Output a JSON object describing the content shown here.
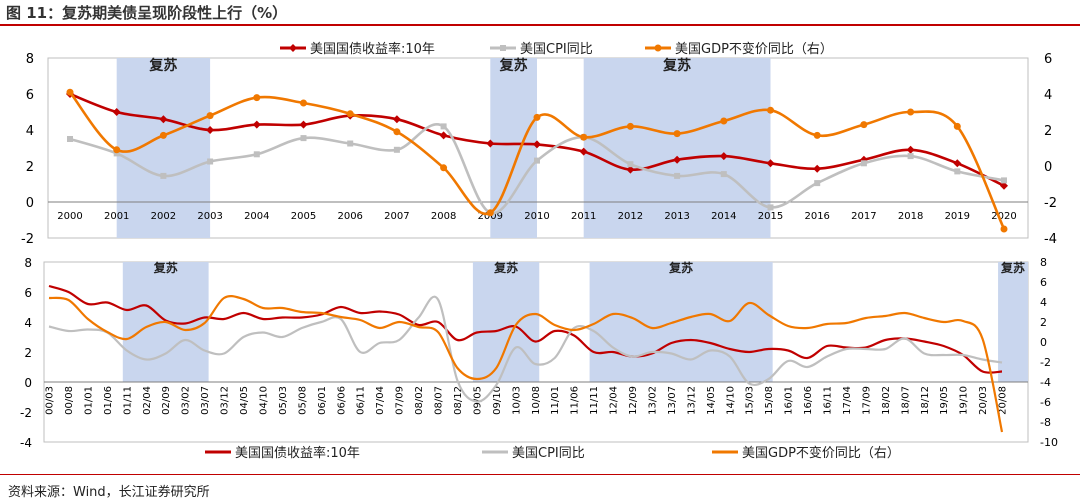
{
  "figure": {
    "title": "图 11：复苏期美债呈现阶段性上行（%）",
    "source": "资料来源：Wind，长江证券研究所"
  },
  "colors": {
    "yield": "#c00000",
    "cpi": "#bfbfbf",
    "gdp": "#f07800",
    "shade": "#c9d6ee",
    "rule": "#c00000"
  },
  "chart_data": [
    {
      "type": "line",
      "id": "annual",
      "x": [
        "2000",
        "2001",
        "2002",
        "2003",
        "2004",
        "2005",
        "2006",
        "2007",
        "2008",
        "2009",
        "2010",
        "2011",
        "2012",
        "2013",
        "2014",
        "2015",
        "2016",
        "2017",
        "2018",
        "2019",
        "2020"
      ],
      "series": [
        {
          "name": "美国国债收益率:10年",
          "axis": "left",
          "color": "#c00000",
          "marker": "diamond",
          "values": [
            6.0,
            5.0,
            4.6,
            4.0,
            4.3,
            4.3,
            4.8,
            4.6,
            3.7,
            3.25,
            3.2,
            2.8,
            1.8,
            2.35,
            2.55,
            2.15,
            1.85,
            2.35,
            2.9,
            2.15,
            0.9
          ]
        },
        {
          "name": "美国CPI同比",
          "axis": "left",
          "color": "#bfbfbf",
          "marker": "square",
          "values": [
            3.5,
            2.7,
            1.45,
            2.25,
            2.65,
            3.55,
            3.25,
            2.9,
            4.2,
            -0.6,
            2.3,
            3.6,
            2.1,
            1.45,
            1.55,
            -0.3,
            1.05,
            2.15,
            2.55,
            1.7,
            1.2
          ]
        },
        {
          "name": "美国GDP不变价同比（右）",
          "axis": "right",
          "color": "#f07800",
          "marker": "circle",
          "values": [
            4.1,
            0.9,
            1.7,
            2.8,
            3.8,
            3.5,
            2.9,
            1.9,
            -0.1,
            -2.6,
            2.7,
            1.6,
            2.2,
            1.8,
            2.5,
            3.1,
            1.7,
            2.3,
            3.0,
            2.2,
            -3.5
          ]
        }
      ],
      "shaded": [
        {
          "from": "2001",
          "to": "2003",
          "label": "复苏"
        },
        {
          "from": "2009",
          "to": "2010",
          "label": "复苏"
        },
        {
          "from": "2011",
          "to": "2015",
          "label": "复苏"
        }
      ],
      "ylim_left": [
        -2,
        8
      ],
      "yticks_left": [
        "-2",
        "0",
        "2",
        "4",
        "6",
        "8"
      ],
      "ylim_right": [
        -4,
        6
      ],
      "yticks_right": [
        "-4",
        "-2",
        "0",
        "2",
        "4",
        "6"
      ],
      "legend": "top"
    },
    {
      "type": "line",
      "id": "monthly",
      "x_tick_labels": [
        "00/03",
        "00/08",
        "01/01",
        "01/06",
        "01/11",
        "02/04",
        "02/09",
        "03/02",
        "03/07",
        "03/12",
        "04/05",
        "04/10",
        "05/03",
        "05/08",
        "06/01",
        "06/06",
        "06/11",
        "07/04",
        "07/09",
        "08/02",
        "08/07",
        "08/12",
        "09/05",
        "09/10",
        "10/03",
        "10/08",
        "11/01",
        "11/06",
        "11/11",
        "12/04",
        "12/09",
        "13/02",
        "13/07",
        "13/12",
        "14/05",
        "14/10",
        "15/03",
        "15/08",
        "16/01",
        "16/06",
        "16/11",
        "17/04",
        "17/09",
        "18/02",
        "18/07",
        "18/12",
        "19/05",
        "19/10",
        "20/03",
        "20/08"
      ],
      "series": [
        {
          "name": "美国国债收益率:10年",
          "axis": "left",
          "color": "#c00000",
          "values": [
            6.4,
            6.0,
            5.2,
            5.3,
            4.8,
            5.1,
            4.1,
            3.9,
            4.3,
            4.2,
            4.6,
            4.2,
            4.3,
            4.3,
            4.5,
            5.0,
            4.6,
            4.7,
            4.5,
            3.8,
            4.0,
            2.8,
            3.3,
            3.4,
            3.7,
            2.7,
            3.4,
            3.1,
            2.0,
            2.0,
            1.7,
            1.9,
            2.6,
            2.8,
            2.6,
            2.2,
            2.0,
            2.2,
            2.1,
            1.6,
            2.4,
            2.3,
            2.3,
            2.8,
            2.9,
            2.7,
            2.4,
            1.8,
            0.7,
            0.7
          ]
        },
        {
          "name": "美国CPI同比",
          "axis": "left",
          "color": "#bfbfbf",
          "values": [
            3.7,
            3.4,
            3.5,
            3.3,
            2.1,
            1.5,
            1.9,
            2.8,
            2.1,
            1.9,
            3.0,
            3.3,
            3.0,
            3.6,
            4.0,
            4.2,
            2.0,
            2.6,
            2.8,
            4.3,
            5.5,
            0.1,
            -1.3,
            -0.2,
            2.3,
            1.2,
            1.6,
            3.6,
            3.4,
            2.3,
            1.7,
            2.0,
            1.9,
            1.5,
            2.1,
            1.7,
            -0.1,
            0.2,
            1.4,
            1.0,
            1.7,
            2.2,
            2.2,
            2.2,
            2.9,
            1.9,
            1.8,
            1.8,
            1.5,
            1.3
          ]
        },
        {
          "name": "美国GDP不变价同比（右）",
          "axis": "right",
          "color": "#f07800",
          "values": [
            4.4,
            4.2,
            2.3,
            1.0,
            0.3,
            1.5,
            2.0,
            1.2,
            1.9,
            4.4,
            4.3,
            3.4,
            3.4,
            3.0,
            2.9,
            2.5,
            2.2,
            1.4,
            2.0,
            1.5,
            1.0,
            -2.6,
            -3.7,
            -2.6,
            1.7,
            2.8,
            1.7,
            1.2,
            1.8,
            2.8,
            2.4,
            1.4,
            1.9,
            2.5,
            2.8,
            2.1,
            3.9,
            2.7,
            1.6,
            1.4,
            1.8,
            1.9,
            2.4,
            2.6,
            2.9,
            2.4,
            2.0,
            2.1,
            0.3,
            -9.0
          ]
        }
      ],
      "shaded": [
        {
          "from": "01/11",
          "to": "03/07",
          "label": "复苏"
        },
        {
          "from": "09/05",
          "to": "10/08",
          "label": "复苏"
        },
        {
          "from": "11/11",
          "to": "15/08",
          "label": "复苏"
        },
        {
          "from": "20/08",
          "to": "20/08",
          "label": "复苏"
        }
      ],
      "ylim_left": [
        -4,
        8
      ],
      "yticks_left": [
        "-4",
        "-2",
        "0",
        "2",
        "4",
        "6",
        "8"
      ],
      "ylim_right": [
        -10,
        8
      ],
      "yticks_right": [
        "-10",
        "-8",
        "-6",
        "-4",
        "-2",
        "0",
        "2",
        "4",
        "6",
        "8"
      ],
      "legend": "bottom"
    }
  ]
}
